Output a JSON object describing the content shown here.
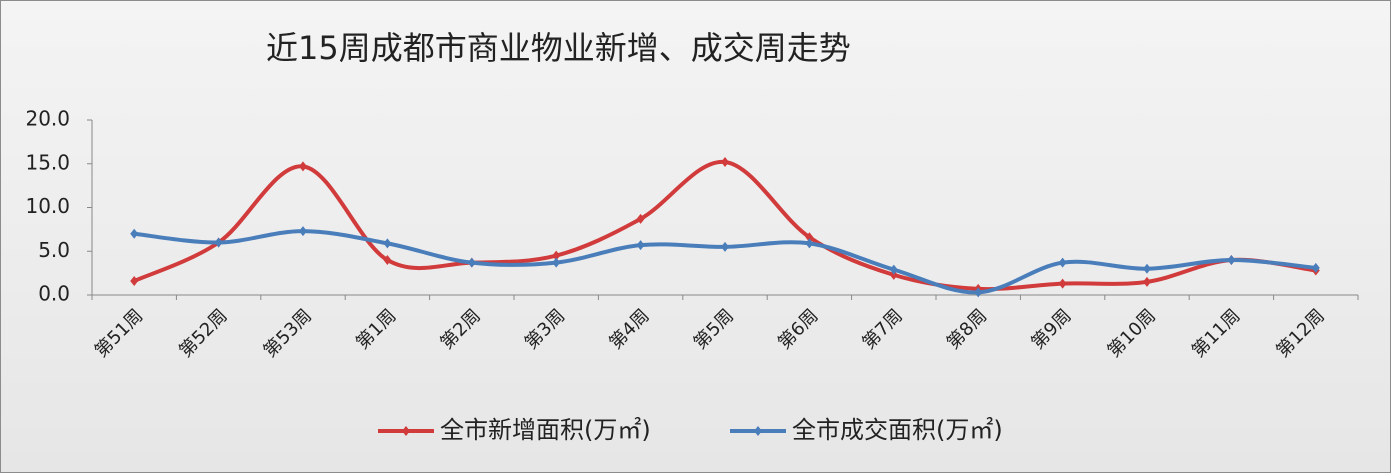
{
  "chart_data": {
    "type": "line",
    "title": "近15周成都市商业物业新增、成交周走势",
    "categories": [
      "第51周",
      "第52周",
      "第53周",
      "第1周",
      "第2周",
      "第3周",
      "第4周",
      "第5周",
      "第6周",
      "第7周",
      "第8周",
      "第9周",
      "第10周",
      "第11周",
      "第12周"
    ],
    "series": [
      {
        "name": "全市新增面积(万㎡)",
        "color": "#d13b3b",
        "values": [
          1.6,
          6.0,
          14.7,
          4.0,
          3.7,
          4.5,
          8.7,
          15.2,
          6.6,
          2.3,
          0.7,
          1.3,
          1.5,
          4.0,
          2.8
        ]
      },
      {
        "name": "全市成交面积(万㎡)",
        "color": "#4a7ebb",
        "values": [
          7.0,
          6.0,
          7.3,
          5.9,
          3.7,
          3.7,
          5.7,
          5.5,
          5.9,
          2.9,
          0.3,
          3.7,
          3.0,
          4.0,
          3.1
        ]
      }
    ],
    "ylim": [
      0,
      20
    ],
    "yticks": [
      {
        "value": 0,
        "label": "0.0"
      },
      {
        "value": 5,
        "label": "5.0"
      },
      {
        "value": 10,
        "label": "10.0"
      },
      {
        "value": 15,
        "label": "15.0"
      },
      {
        "value": 20,
        "label": "20.0"
      }
    ],
    "smooth": true,
    "grid": false,
    "legend": "bottom"
  }
}
